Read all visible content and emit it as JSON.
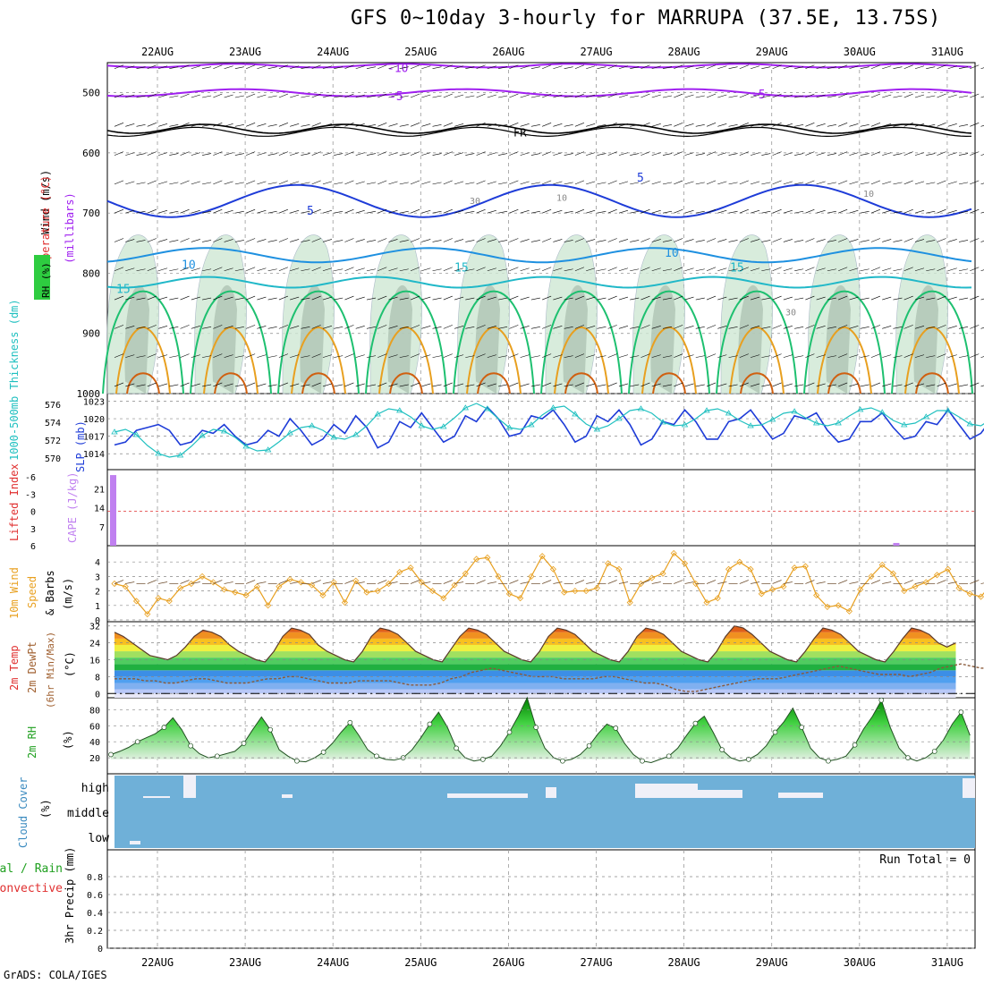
{
  "title": "GFS 0~10day 3-hourly for MARRUPA (37.5E, 13.75S)",
  "credit": "GrADS: COLA/IGES",
  "dates": [
    "22AUG",
    "23AUG",
    "24AUG",
    "25AUG",
    "26AUG",
    "27AUG",
    "28AUG",
    "29AUG",
    "30AUG",
    "31AUG"
  ],
  "colors": {
    "purple": "#a020f0",
    "blue": "#1e3cd8",
    "lightblue": "#1e90e0",
    "teal": "#20b8c8",
    "cyan": "#20c0c0",
    "green": "#1ec070",
    "orange": "#e8a020",
    "darkorange": "#d06010",
    "red": "#e03030",
    "cloud": "#6fb0d8"
  },
  "chart_data": [
    {
      "type": "contour",
      "name": "upper_air",
      "ylabel": "(millibars)",
      "ylim": [
        450,
        1000
      ],
      "yticks": [
        500,
        600,
        700,
        800,
        900,
        1000
      ],
      "legend": {
        "wind": "Wind (m/s)",
        "temperature": "Temperature (°C)",
        "rh": "RH (%)"
      },
      "contour_labels": {
        "t_minus10": "-10",
        "t_minus5": "-5",
        "freezing": "FR",
        "t5": "5",
        "t10": "10",
        "t15": "15",
        "rh30": "30",
        "rh10": "10"
      }
    },
    {
      "type": "line",
      "name": "slp_thickness",
      "ylabel_left": "1000-500mb Thickness (dm)",
      "ylabel_right": "SLP (mb)",
      "left_ticks": [
        "570",
        "572",
        "574",
        "576"
      ],
      "right_ticks": [
        "1014",
        "1017",
        "1020",
        "1023"
      ],
      "slp_mb": [
        1015.5,
        1016,
        1018,
        1018.5,
        1019,
        1018,
        1015.5,
        1016,
        1018,
        1017.5,
        1019,
        1017,
        1015.5,
        1016,
        1018,
        1017,
        1020,
        1018,
        1015.5,
        1016.5,
        1019,
        1017.5,
        1020.5,
        1018.5,
        1015,
        1016,
        1019.5,
        1018.5,
        1021,
        1018.5,
        1016,
        1017,
        1020.5,
        1019.5,
        1022,
        1020,
        1017,
        1017.5,
        1020.5,
        1020,
        1021.5,
        1019,
        1016,
        1017,
        1020.5,
        1019.5,
        1021.5,
        1019,
        1015.5,
        1016.5,
        1019.5,
        1019,
        1021.5,
        1019.5,
        1016.5,
        1016.5,
        1019.5,
        1020,
        1021.5,
        1019,
        1016.5,
        1017.5,
        1020.5,
        1020,
        1021,
        1018,
        1016,
        1016.5,
        1019.5,
        1019.5,
        1021,
        1018.5,
        1016.5,
        1017,
        1019.5,
        1019,
        1021.5,
        1019,
        1016.5,
        1017.5,
        1020
      ],
      "thickness_dm": [
        572.9,
        573.2,
        572.6,
        571.4,
        570.5,
        570.1,
        570.3,
        571.3,
        572.5,
        573.2,
        573.0,
        572.3,
        571.3,
        570.8,
        570.9,
        571.8,
        572.8,
        573.4,
        573.6,
        573.1,
        572.3,
        572.1,
        572.6,
        573.6,
        574.9,
        575.5,
        575.3,
        574.6,
        573.6,
        573.2,
        573.5,
        574.5,
        575.6,
        576.1,
        575.5,
        574.4,
        573.4,
        573.2,
        573.7,
        574.8,
        575.6,
        575.8,
        574.9,
        573.8,
        573.2,
        573.6,
        574.4,
        575.3,
        575.5,
        575.0,
        574.0,
        573.6,
        573.7,
        574.4,
        575.3,
        575.5,
        575.0,
        574.2,
        573.6,
        573.7,
        574.3,
        575.0,
        575.2,
        574.5,
        573.9,
        573.6,
        573.9,
        574.7,
        575.4,
        575.6,
        575.1,
        574.2,
        573.7,
        573.9,
        574.6,
        575.3,
        575.3,
        574.6,
        573.8,
        573.6,
        574.4
      ]
    },
    {
      "type": "bar",
      "name": "stability",
      "ylabel_left": "Lifted Index",
      "ylabel_right": "CAPE (J/kg)",
      "li_ticks": [
        "6",
        "3",
        "0",
        "-3",
        "-6"
      ],
      "cape_ticks": [
        "7",
        "14",
        "21"
      ],
      "cape_jkg": {
        "index": [
          0,
          71
        ],
        "values": [
          26,
          1
        ]
      }
    },
    {
      "type": "line",
      "name": "wind10m",
      "ylabel": "10m Wind Speed & Barbs (m/s)",
      "ylim": [
        0,
        5
      ],
      "yticks": [
        0,
        1,
        2,
        3,
        4
      ],
      "speed_ms": [
        2.5,
        2.3,
        1.3,
        0.4,
        1.5,
        1.3,
        2.2,
        2.5,
        3.0,
        2.6,
        2.1,
        1.9,
        1.7,
        2.3,
        1.0,
        2.3,
        2.8,
        2.6,
        2.4,
        1.7,
        2.6,
        1.2,
        2.7,
        1.9,
        2.0,
        2.5,
        3.3,
        3.6,
        2.6,
        2.0,
        1.5,
        2.4,
        3.2,
        4.2,
        4.3,
        3.0,
        1.8,
        1.5,
        3.0,
        4.4,
        3.5,
        1.9,
        2.0,
        2.0,
        2.2,
        3.9,
        3.5,
        1.2,
        2.5,
        2.9,
        3.2,
        4.6,
        3.9,
        2.5,
        1.2,
        1.5,
        3.5,
        4.0,
        3.5,
        1.8,
        2.1,
        2.3,
        3.6,
        3.7,
        1.7,
        0.9,
        1.0,
        0.6,
        2.1,
        3.0,
        3.8,
        3.2,
        2.0,
        2.3,
        2.6,
        3.1,
        3.5,
        2.2,
        1.8,
        1.6,
        2.5
      ]
    },
    {
      "type": "area",
      "name": "temperature2m",
      "ylabel": "2m Temp 2m DewPt (6hr Min/Max) (°C)",
      "ylim": [
        -2,
        34
      ],
      "yticks": [
        0,
        8,
        16,
        24,
        32
      ],
      "temp_c": [
        29,
        27,
        24,
        21,
        18,
        17,
        16,
        18,
        22,
        27,
        30,
        29,
        27,
        23,
        20,
        18,
        16,
        15,
        20,
        27,
        31,
        30,
        28,
        23,
        20,
        18,
        16,
        15,
        20,
        27,
        31,
        30,
        28,
        24,
        20,
        18,
        16,
        15,
        21,
        27,
        31,
        30,
        28,
        24,
        20,
        18,
        16,
        15,
        20,
        27,
        31,
        30,
        28,
        24,
        20,
        18,
        16,
        15,
        20,
        27,
        31,
        30,
        28,
        24,
        20,
        18,
        16,
        15,
        20,
        27,
        32,
        31,
        28,
        24,
        20,
        18,
        16,
        15,
        20,
        26,
        31,
        30,
        28,
        24,
        20,
        18,
        16,
        15,
        20,
        26,
        31,
        30,
        28,
        24,
        22,
        24
      ],
      "dewpt_c": [
        7,
        7,
        7,
        6,
        6,
        5,
        5,
        6,
        7,
        7,
        6,
        5,
        5,
        5,
        6,
        7,
        7,
        8,
        8,
        7,
        6,
        5,
        5,
        5,
        6,
        6,
        6,
        6,
        5,
        4,
        4,
        4,
        5,
        7,
        8,
        10,
        11,
        12,
        11,
        10,
        9,
        8,
        8,
        8,
        7,
        7,
        7,
        7,
        8,
        8,
        7,
        6,
        5,
        5,
        4,
        2,
        1,
        1,
        2,
        3,
        4,
        5,
        6,
        7,
        7,
        7,
        8,
        9,
        10,
        11,
        12,
        13,
        12,
        11,
        10,
        9,
        9,
        9,
        8,
        9,
        10,
        12,
        13,
        14,
        13,
        12,
        12
      ]
    },
    {
      "type": "area",
      "name": "rh2m",
      "ylabel": "2m RH (%)",
      "ylim": [
        0,
        95
      ],
      "yticks": [
        20,
        40,
        60,
        80
      ],
      "rh_pct": [
        24,
        28,
        33,
        40,
        45,
        50,
        58,
        70,
        55,
        35,
        25,
        20,
        22,
        25,
        28,
        38,
        55,
        71,
        55,
        30,
        22,
        16,
        15,
        20,
        27,
        38,
        52,
        64,
        48,
        30,
        22,
        18,
        17,
        20,
        30,
        45,
        62,
        77,
        58,
        32,
        20,
        16,
        18,
        22,
        35,
        52,
        72,
        95,
        58,
        32,
        20,
        16,
        18,
        24,
        35,
        50,
        62,
        57,
        38,
        24,
        16,
        14,
        18,
        22,
        32,
        48,
        63,
        72,
        52,
        30,
        20,
        16,
        18,
        24,
        35,
        52,
        65,
        82,
        58,
        32,
        20,
        16,
        18,
        22,
        36,
        56,
        72,
        92,
        58,
        32,
        20,
        16,
        20,
        28,
        42,
        62,
        77,
        48
      ]
    },
    {
      "type": "bar",
      "name": "cloud_cover",
      "ylabel": "Cloud Cover (%)",
      "levels": [
        "high",
        "middle",
        "low"
      ]
    },
    {
      "type": "bar",
      "name": "precip",
      "ylabel_left": "3hr Precip (mm)",
      "ylabel_right": "Total / Rain Convective",
      "ylim": [
        0,
        1
      ],
      "yticks": [
        "0",
        "0.2",
        "0.4",
        "0.6",
        "0.8"
      ],
      "run_total_label": "Run Total = 0",
      "values": []
    }
  ]
}
